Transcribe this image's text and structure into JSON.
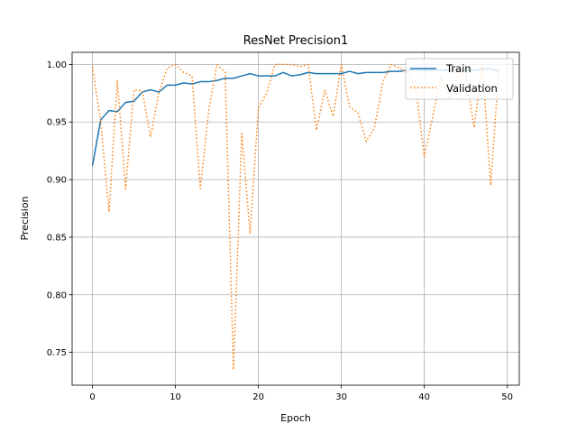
{
  "chart_data": {
    "type": "line",
    "title": "ResNet Precision1",
    "xlabel": "Epoch",
    "ylabel": "Precision",
    "xlim": [
      -2.45,
      51.45
    ],
    "ylim": [
      0.7215,
      1.0105
    ],
    "xticks": [
      0,
      10,
      20,
      30,
      40,
      50
    ],
    "yticks": [
      0.75,
      0.8,
      0.85,
      0.9,
      0.95,
      1.0
    ],
    "ytick_labels": [
      "0.75",
      "0.80",
      "0.85",
      "0.90",
      "0.95",
      "1.00"
    ],
    "grid": true,
    "legend_position": "top-right",
    "series": [
      {
        "name": "Train",
        "color": "#1f77b4",
        "style": "solid",
        "x": [
          0,
          1,
          2,
          3,
          4,
          5,
          6,
          7,
          8,
          9,
          10,
          11,
          12,
          13,
          14,
          15,
          16,
          17,
          18,
          19,
          20,
          21,
          22,
          23,
          24,
          25,
          26,
          27,
          28,
          29,
          30,
          31,
          32,
          33,
          34,
          35,
          36,
          37,
          38,
          39,
          40,
          41,
          42,
          43,
          44,
          45,
          46,
          47,
          48,
          49
        ],
        "values": [
          0.912,
          0.952,
          0.96,
          0.959,
          0.967,
          0.968,
          0.976,
          0.978,
          0.976,
          0.982,
          0.982,
          0.984,
          0.983,
          0.985,
          0.985,
          0.986,
          0.988,
          0.988,
          0.99,
          0.992,
          0.99,
          0.99,
          0.99,
          0.993,
          0.99,
          0.991,
          0.993,
          0.992,
          0.992,
          0.992,
          0.992,
          0.994,
          0.992,
          0.993,
          0.993,
          0.993,
          0.994,
          0.994,
          0.995,
          0.995,
          0.995,
          0.995,
          0.995,
          0.995,
          0.995,
          0.995,
          0.995,
          0.996,
          0.996,
          0.994
        ]
      },
      {
        "name": "Validation",
        "color": "#ff7f0e",
        "style": "dotted",
        "x": [
          0,
          1,
          2,
          3,
          4,
          5,
          6,
          7,
          8,
          9,
          10,
          11,
          12,
          13,
          14,
          15,
          16,
          17,
          18,
          19,
          20,
          21,
          22,
          23,
          24,
          25,
          26,
          27,
          28,
          29,
          30,
          31,
          32,
          33,
          34,
          35,
          36,
          37,
          38,
          39,
          40,
          41,
          42,
          43,
          44,
          45,
          46,
          47,
          48,
          49
        ],
        "values": [
          0.998,
          0.95,
          0.872,
          0.986,
          0.892,
          0.978,
          0.977,
          0.937,
          0.975,
          0.997,
          1.0,
          0.993,
          0.99,
          0.892,
          0.959,
          1.0,
          0.993,
          0.735,
          0.94,
          0.853,
          0.962,
          0.975,
          1.0,
          1.0,
          1.0,
          0.998,
          1.0,
          0.943,
          0.978,
          0.955,
          1.0,
          0.963,
          0.958,
          0.933,
          0.945,
          0.985,
          1.0,
          0.997,
          0.993,
          0.978,
          0.92,
          0.954,
          0.99,
          0.97,
          0.99,
          0.993,
          0.945,
          1.0,
          0.895,
          0.998
        ]
      }
    ]
  }
}
